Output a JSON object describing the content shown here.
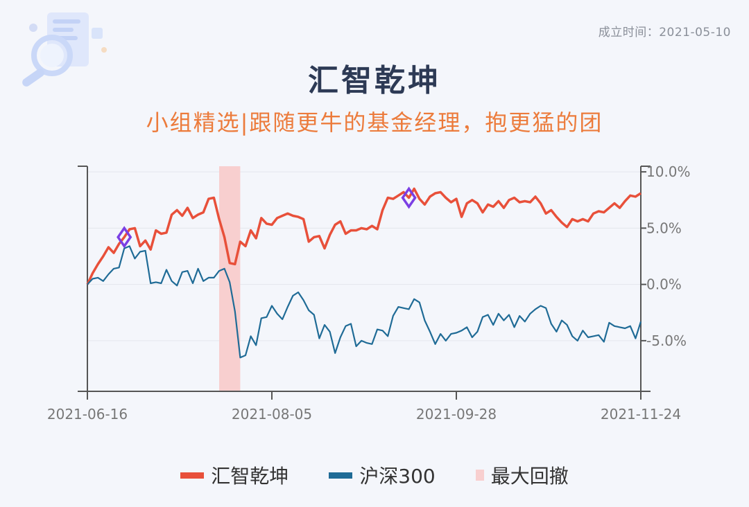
{
  "header": {
    "founded_label": "成立时间：2021-05-10",
    "title": "汇智乾坤",
    "subtitle": "小组精选|跟随更牛的基金经理，抱更猛的团"
  },
  "colors": {
    "fund": "#e8503a",
    "index": "#1f6b96",
    "drawdown": "#f8cfcf",
    "marker": "#7b3fe4",
    "title": "#2d3a55",
    "subtitle": "#ec7b3b"
  },
  "icons": {
    "logo": "magnifier-document-icon",
    "marker": "diamond-marker-icon"
  },
  "chart_data": {
    "type": "line",
    "title": "汇智乾坤",
    "x_tick_labels": [
      "2021-06-16",
      "2021-08-05",
      "2021-09-28",
      "2021-11-24"
    ],
    "x_tick_index": [
      0,
      35,
      70,
      105
    ],
    "x_range": [
      0,
      105
    ],
    "ylim": [
      -9.5,
      10.5
    ],
    "y_ticks": [
      10,
      5,
      0,
      -5
    ],
    "y_tick_labels": [
      "10.0%",
      "5.0%",
      "0.0%",
      "-5.0%"
    ],
    "series": [
      {
        "name": "汇智乾坤",
        "values": [
          0.0,
          1.0,
          1.8,
          2.5,
          3.3,
          2.8,
          3.6,
          4.2,
          4.9,
          5.0,
          3.4,
          3.9,
          3.1,
          4.8,
          4.5,
          4.6,
          6.2,
          6.6,
          6.1,
          6.8,
          5.9,
          6.2,
          6.4,
          7.6,
          7.7,
          5.8,
          4.2,
          1.9,
          1.8,
          3.8,
          3.4,
          4.8,
          4.1,
          5.9,
          5.4,
          5.3,
          5.9,
          6.1,
          6.3,
          6.1,
          6.0,
          5.8,
          3.8,
          4.2,
          4.3,
          3.2,
          4.4,
          5.3,
          5.6,
          4.5,
          4.8,
          4.8,
          5.0,
          4.9,
          5.2,
          4.9,
          6.6,
          7.7,
          7.6,
          7.9,
          8.2,
          7.7,
          8.5,
          7.6,
          7.1,
          7.8,
          8.1,
          8.2,
          7.7,
          7.3,
          7.6,
          6.0,
          7.2,
          7.5,
          7.2,
          6.4,
          7.1,
          6.9,
          7.4,
          6.8,
          7.5,
          7.7,
          7.3,
          7.4,
          7.3,
          7.8,
          7.2,
          6.3,
          6.6,
          6.0,
          5.5,
          5.1,
          5.8,
          5.6,
          5.8,
          5.6,
          6.3,
          6.5,
          6.4,
          6.8,
          7.2,
          6.8,
          7.4,
          7.9,
          7.8,
          8.1
        ]
      },
      {
        "name": "沪深300",
        "values": [
          0.0,
          0.5,
          0.6,
          0.3,
          0.9,
          1.4,
          1.5,
          3.2,
          3.4,
          2.3,
          2.9,
          3.0,
          0.1,
          0.2,
          0.1,
          1.3,
          0.3,
          -0.1,
          1.1,
          1.2,
          0.1,
          1.4,
          0.3,
          0.6,
          0.6,
          1.2,
          1.4,
          0.2,
          -2.4,
          -6.5,
          -6.3,
          -4.6,
          -5.4,
          -3.0,
          -2.9,
          -1.9,
          -2.6,
          -3.1,
          -2.0,
          -1.0,
          -0.7,
          -1.4,
          -2.3,
          -2.7,
          -4.8,
          -3.6,
          -4.2,
          -6.1,
          -4.7,
          -3.7,
          -3.5,
          -5.5,
          -5.0,
          -5.2,
          -5.3,
          -4.0,
          -4.1,
          -4.6,
          -2.8,
          -2.0,
          -2.1,
          -2.2,
          -1.3,
          -1.6,
          -3.2,
          -4.2,
          -5.3,
          -4.4,
          -5.0,
          -4.4,
          -4.3,
          -4.1,
          -3.8,
          -4.7,
          -4.2,
          -2.9,
          -2.7,
          -3.6,
          -2.6,
          -3.2,
          -2.7,
          -3.8,
          -2.8,
          -3.3,
          -2.6,
          -2.2,
          -1.9,
          -2.1,
          -3.5,
          -4.2,
          -3.2,
          -3.6,
          -4.6,
          -5.0,
          -4.1,
          -4.7,
          -4.6,
          -4.5,
          -5.1,
          -3.4,
          -3.7,
          -3.8,
          -3.9,
          -3.7,
          -4.8,
          -3.3
        ]
      }
    ],
    "max_drawdown_index_range": [
      25,
      29
    ],
    "markers_on_fund": [
      7,
      61
    ],
    "legend": [
      "汇智乾坤",
      "沪深300",
      "最大回撤"
    ]
  }
}
